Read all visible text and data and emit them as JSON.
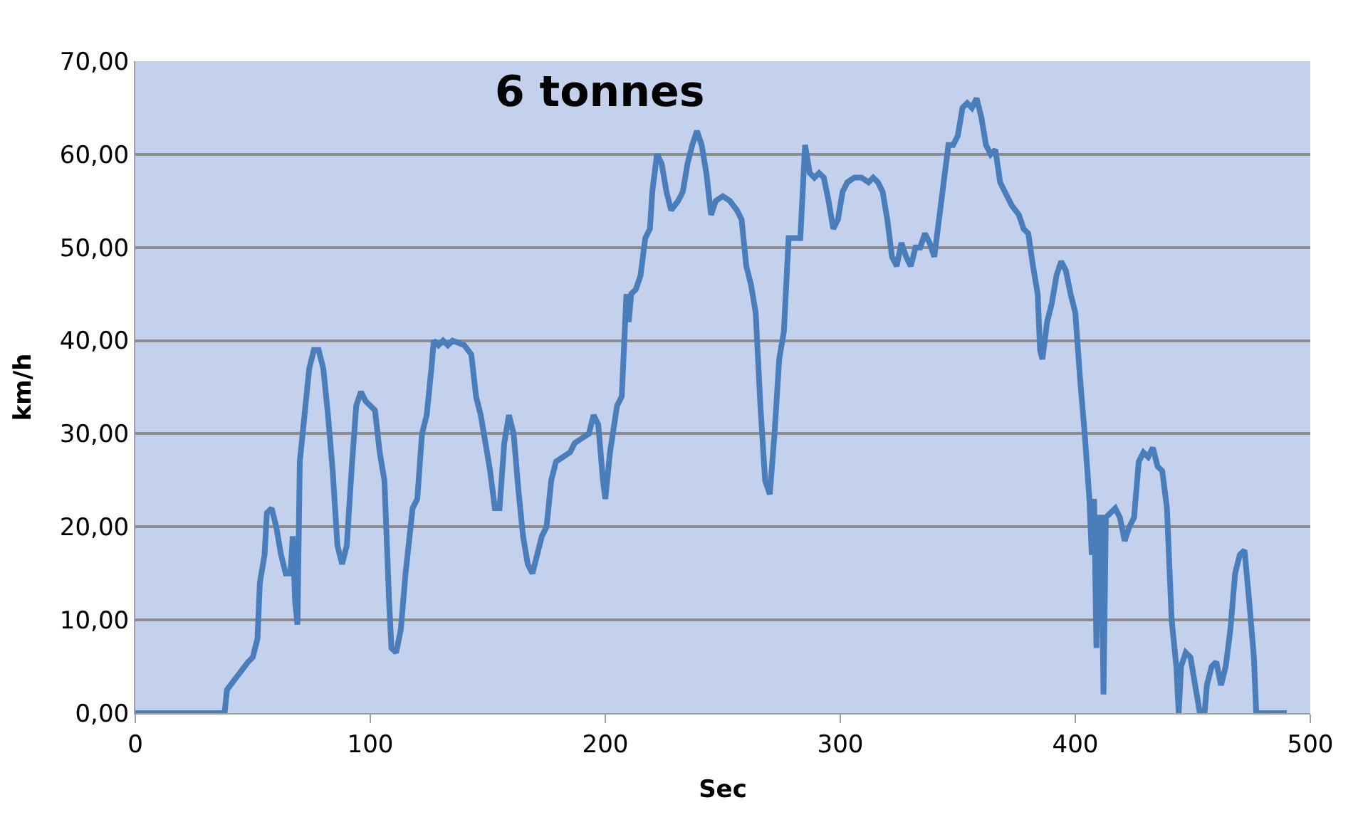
{
  "chart_data": {
    "type": "line",
    "title": "6 tonnes",
    "xlabel": "Sec",
    "ylabel": "km/h",
    "xlim": [
      0,
      500
    ],
    "xticks": [
      0,
      100,
      200,
      300,
      400,
      500
    ],
    "ylim": [
      0,
      70
    ],
    "yticks": [
      {
        "value": 0,
        "label": "0,00"
      },
      {
        "value": 10,
        "label": "10,00"
      },
      {
        "value": 20,
        "label": "20,00"
      },
      {
        "value": 30,
        "label": "30,00"
      },
      {
        "value": 40,
        "label": "40,00"
      },
      {
        "value": 50,
        "label": "50,00"
      },
      {
        "value": 60,
        "label": "60,00"
      },
      {
        "value": 70,
        "label": "70,00"
      }
    ],
    "grid": "y",
    "marker": "none",
    "line_style": "solid",
    "series": [
      {
        "color": "#4a7ebb",
        "x": [
          0,
          38,
          39,
          42,
          45,
          48,
          50,
          52,
          53,
          55,
          56,
          58,
          60,
          62,
          64,
          66,
          67,
          68,
          69,
          70,
          72,
          74,
          76,
          78,
          80,
          82,
          84,
          86,
          88,
          90,
          92,
          94,
          96,
          98,
          100,
          102,
          104,
          106,
          108,
          109,
          111,
          113,
          115,
          118,
          120,
          122,
          124,
          126,
          127,
          129,
          131,
          133,
          135,
          140,
          143,
          145,
          147,
          149,
          151,
          153,
          155,
          157,
          159,
          161,
          163,
          165,
          167,
          169,
          171,
          173,
          175,
          177,
          179,
          182,
          185,
          187,
          190,
          193,
          195,
          197,
          199,
          200,
          202,
          205,
          207,
          209,
          210,
          211,
          213,
          215,
          217,
          219,
          220,
          222,
          224,
          226,
          228,
          231,
          233,
          235,
          237,
          239,
          241,
          243,
          245,
          247,
          250,
          253,
          256,
          258,
          260,
          262,
          264,
          266,
          268,
          270,
          272,
          274,
          276,
          278,
          281,
          283,
          285,
          287,
          289,
          291,
          293,
          295,
          297,
          299,
          301,
          303,
          306,
          309,
          312,
          314,
          316,
          318,
          320,
          322,
          324,
          326,
          328,
          330,
          332,
          334,
          336,
          338,
          340,
          342,
          344,
          346,
          348,
          350,
          352,
          354,
          356,
          358,
          360,
          362,
          364,
          366,
          368,
          370,
          373,
          376,
          378,
          380,
          382,
          384,
          385,
          386,
          388,
          390,
          392,
          394,
          396,
          398,
          400,
          402,
          404,
          406,
          407,
          408,
          409,
          410,
          411,
          412,
          413,
          415,
          417,
          419,
          421,
          423,
          425,
          427,
          429,
          431,
          433,
          435,
          437,
          439,
          441,
          443,
          444,
          445,
          447,
          449,
          451,
          453,
          455,
          456,
          458,
          460,
          462,
          464,
          466,
          468,
          470,
          472,
          474,
          476,
          477,
          490
        ],
        "values": [
          0,
          0,
          2.5,
          3.5,
          4.5,
          5.5,
          6,
          8,
          14,
          17,
          21.5,
          22,
          20,
          17,
          15,
          15,
          19,
          12,
          9.5,
          27,
          32,
          37,
          39,
          39,
          37,
          32,
          26,
          18,
          16,
          18,
          26,
          33,
          34.5,
          33.5,
          33,
          32.5,
          28,
          25,
          12,
          7,
          6.5,
          9,
          15,
          22,
          23,
          30,
          32,
          37,
          40,
          39.5,
          40,
          39.5,
          40,
          39.5,
          38.5,
          34,
          32,
          29,
          26,
          22,
          22,
          29,
          32,
          30,
          24,
          19,
          16,
          15,
          17,
          19,
          20,
          25,
          27,
          27.5,
          28,
          29,
          29.5,
          30,
          32,
          31,
          25,
          23,
          28,
          33,
          34,
          45,
          42,
          45,
          45.5,
          47,
          51,
          52,
          56,
          60,
          59,
          56,
          54,
          55,
          56,
          59,
          61,
          62.5,
          61,
          58,
          53.5,
          55,
          55.5,
          55,
          54,
          53,
          48,
          46,
          43,
          33,
          25,
          23.5,
          30,
          38,
          41,
          51,
          51,
          51,
          61,
          58,
          57.5,
          58,
          57.5,
          55,
          52,
          53,
          56,
          57,
          57.5,
          57.5,
          57,
          57.5,
          57,
          56,
          53,
          49,
          48,
          50.5,
          49,
          48,
          50,
          50,
          51.5,
          50.5,
          49,
          53,
          57,
          61,
          61,
          62,
          65,
          65.5,
          65,
          66,
          64,
          61,
          60,
          60.5,
          57,
          56,
          54.5,
          53.5,
          52,
          51.5,
          48,
          45,
          39,
          38,
          42,
          44,
          47,
          48.5,
          47.5,
          45,
          43,
          36,
          30,
          23,
          17,
          23,
          7,
          21,
          21,
          2,
          21,
          21.5,
          22,
          21,
          18.5,
          20,
          21,
          27,
          28,
          27.5,
          28.5,
          26.5,
          26,
          22,
          10,
          5,
          0,
          5,
          6.5,
          6,
          3,
          0,
          0,
          3,
          5,
          5.5,
          3,
          5,
          9,
          15,
          17,
          17.5,
          12,
          6,
          0,
          0
        ]
      }
    ]
  }
}
